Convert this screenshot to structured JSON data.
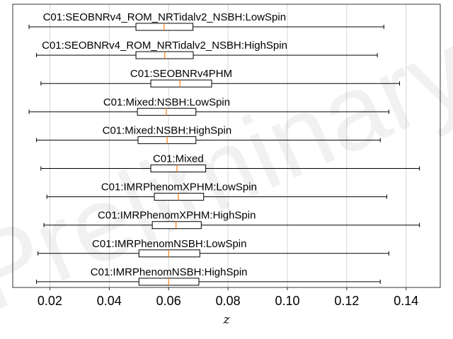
{
  "chart_data": {
    "type": "boxplot",
    "orientation": "horizontal",
    "xlabel": "z",
    "ylabel": "",
    "xlim": [
      0.0075,
      0.1515
    ],
    "xticks": [
      0.02,
      0.04,
      0.06,
      0.08,
      0.1,
      0.12,
      0.14
    ],
    "xtick_labels": [
      "0.02",
      "0.04",
      "0.06",
      "0.08",
      "0.10",
      "0.12",
      "0.14"
    ],
    "grid": "vertical",
    "watermark": "Preliminary",
    "colors": {
      "box": "#000000",
      "median": "#ff7f0e",
      "grid": "#cccccc"
    },
    "series": [
      {
        "name": "C01:SEOBNRv4_ROM_NRTidalv2_NSBH:LowSpin",
        "whisker_low": 0.013,
        "q1": 0.049,
        "median": 0.0585,
        "q3": 0.0682,
        "whisker_high": 0.1325
      },
      {
        "name": "C01:SEOBNRv4_ROM_NRTidalv2_NSBH:HighSpin",
        "whisker_low": 0.0155,
        "q1": 0.049,
        "median": 0.0587,
        "q3": 0.0683,
        "whisker_high": 0.1303
      },
      {
        "name": "C01:SEOBNRv4PHM",
        "whisker_low": 0.017,
        "q1": 0.054,
        "median": 0.0638,
        "q3": 0.0745,
        "whisker_high": 0.1378
      },
      {
        "name": "C01:Mixed:NSBH:LowSpin",
        "whisker_low": 0.013,
        "q1": 0.0495,
        "median": 0.0592,
        "q3": 0.0692,
        "whisker_high": 0.1342
      },
      {
        "name": "C01:Mixed:NSBH:HighSpin",
        "whisker_low": 0.0155,
        "q1": 0.0497,
        "median": 0.0595,
        "q3": 0.0692,
        "whisker_high": 0.1313
      },
      {
        "name": "C01:Mixed",
        "whisker_low": 0.017,
        "q1": 0.054,
        "median": 0.0628,
        "q3": 0.0725,
        "whisker_high": 0.1445
      },
      {
        "name": "C01:IMRPhenomXPHM:LowSpin",
        "whisker_low": 0.019,
        "q1": 0.0552,
        "median": 0.0633,
        "q3": 0.0718,
        "whisker_high": 0.1335
      },
      {
        "name": "C01:IMRPhenomXPHM:HighSpin",
        "whisker_low": 0.018,
        "q1": 0.0545,
        "median": 0.0625,
        "q3": 0.071,
        "whisker_high": 0.1445
      },
      {
        "name": "C01:IMRPhenomNSBH:LowSpin",
        "whisker_low": 0.016,
        "q1": 0.05,
        "median": 0.06,
        "q3": 0.0705,
        "whisker_high": 0.1342
      },
      {
        "name": "C01:IMRPhenomNSBH:HighSpin",
        "whisker_low": 0.0155,
        "q1": 0.05,
        "median": 0.06,
        "q3": 0.0702,
        "whisker_high": 0.1313
      }
    ]
  }
}
